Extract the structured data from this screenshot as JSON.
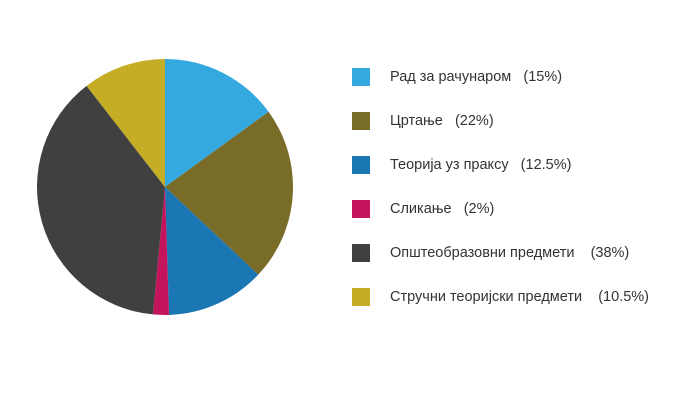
{
  "chart_data": {
    "type": "pie",
    "start_angle_deg": 0,
    "direction": "clockwise",
    "slices": [
      {
        "label": "Рад за рачунаром",
        "value": 15,
        "value_label": "(15%)",
        "color": "#33A9DF"
      },
      {
        "label": "Цртање",
        "value": 22,
        "value_label": "(22%)",
        "color": "#786C28"
      },
      {
        "label": "Теорија уз праксу",
        "value": 12.5,
        "value_label": "(12.5%)",
        "color": "#1B76B4"
      },
      {
        "label": "Сликање",
        "value": 2,
        "value_label": "(2%)",
        "color": "#C4155C"
      },
      {
        "label": "Општеобразовни предмети",
        "value": 38,
        "value_label": "(38%)",
        "color": "#404040"
      },
      {
        "label": "Стручни теоријски предмети",
        "value": 10.5,
        "value_label": "(10.5%)",
        "color": "#C6AD26"
      }
    ],
    "legend_position": "right"
  }
}
